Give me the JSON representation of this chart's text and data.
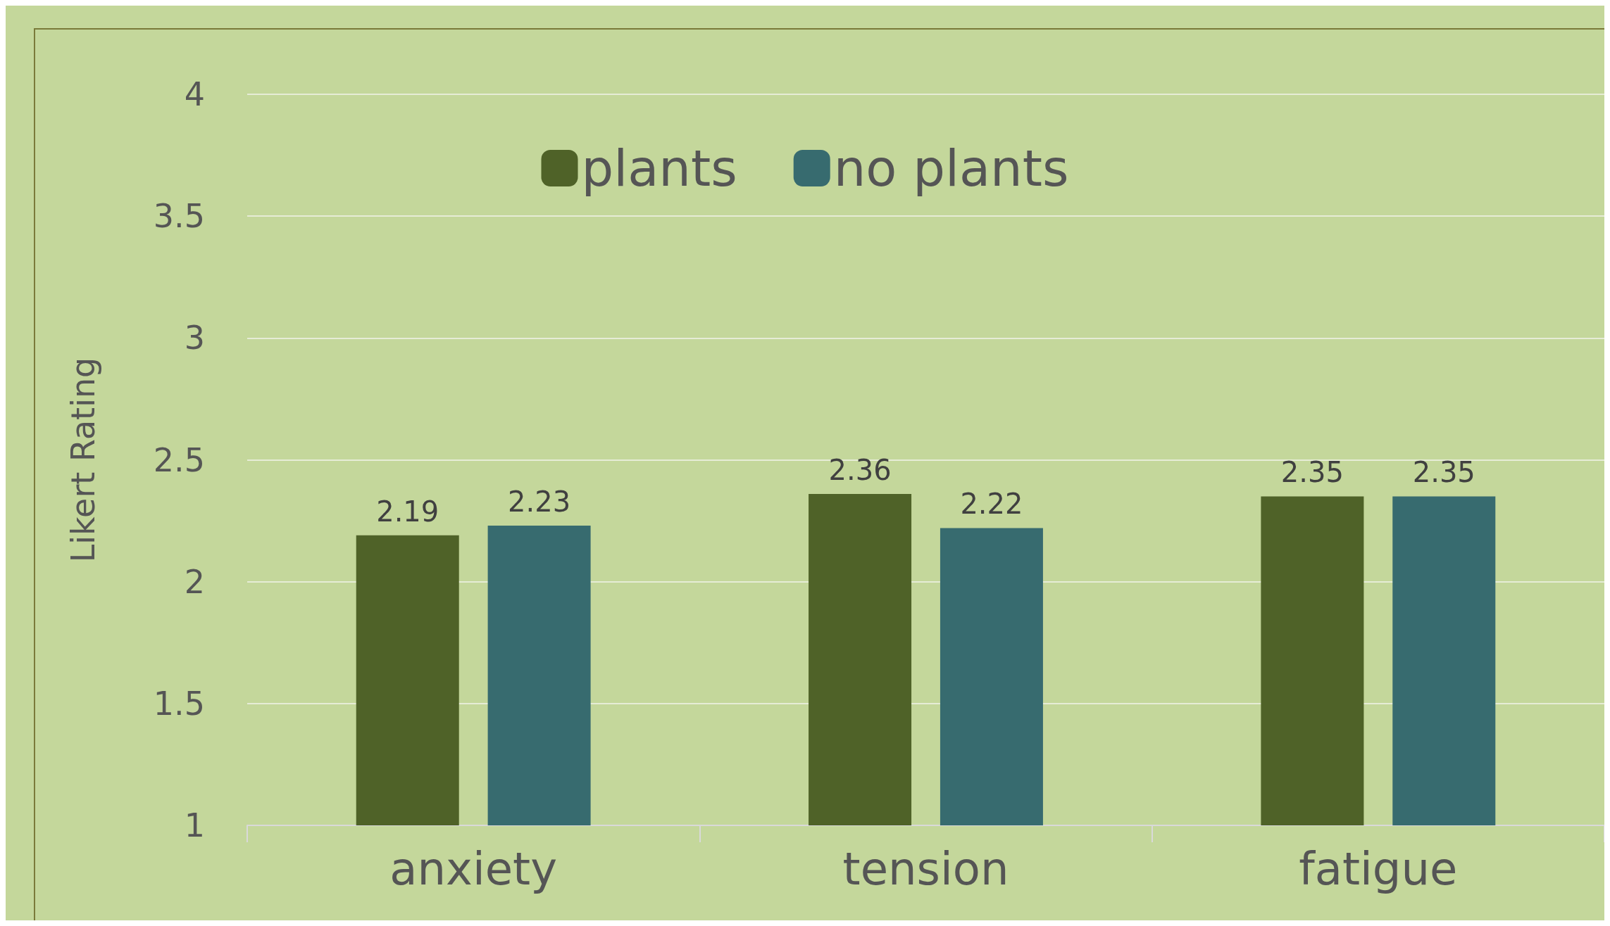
{
  "chart_data": {
    "type": "bar",
    "ylabel": "Likert Rating",
    "categories": [
      "anxiety",
      "tension",
      "fatigue"
    ],
    "series": [
      {
        "name": "plants",
        "color": "#4f6228",
        "values": [
          2.19,
          2.36,
          2.35
        ]
      },
      {
        "name": "no plants",
        "color": "#376b6f",
        "values": [
          2.23,
          2.22,
          2.35
        ]
      }
    ],
    "ylim": [
      1,
      4
    ],
    "yticks": [
      1,
      1.5,
      2,
      2.5,
      3,
      3.5,
      4
    ],
    "grid": "y",
    "legend": "top",
    "data_labels": true
  }
}
